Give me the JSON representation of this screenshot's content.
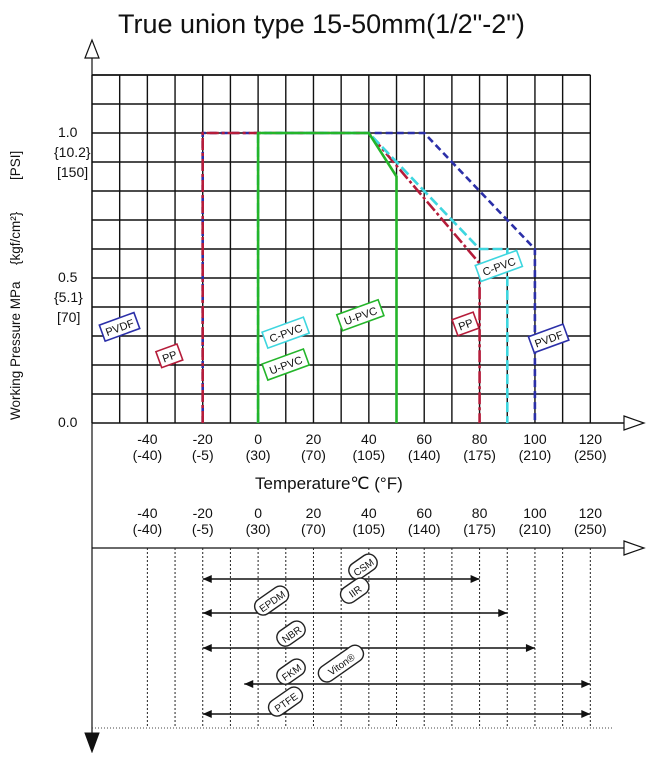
{
  "page_title": "True union type 15-50mm(1/2\"-2\")",
  "chart_data": {
    "type": "line",
    "title": "True union type 15-50mm(1/2\"-2\")",
    "xlabel": "Temperature℃ (°F)",
    "ylabel": {
      "mpa": "Working Pressure  MPa",
      "kgf": "{kgf/cm²}",
      "psi": "[PSI]"
    },
    "xlim": [
      -60,
      130
    ],
    "ylim": [
      0,
      1.2
    ],
    "grid": true,
    "x_ticks": [
      {
        "c": "-40",
        "f": "(-40)"
      },
      {
        "c": "-20",
        "f": "(-5)"
      },
      {
        "c": "0",
        "f": "(30)"
      },
      {
        "c": "20",
        "f": "(70)"
      },
      {
        "c": "40",
        "f": "(105)"
      },
      {
        "c": "60",
        "f": "(140)"
      },
      {
        "c": "80",
        "f": "(175)"
      },
      {
        "c": "100",
        "f": "(210)"
      },
      {
        "c": "120",
        "f": "(250)"
      }
    ],
    "y_ticks": [
      {
        "value": 1.0,
        "mpa": "1.0",
        "kgf": "{10.2}",
        "psi": "[150]"
      },
      {
        "value": 0.5,
        "mpa": "0.5",
        "kgf": "{5.1}",
        "psi": "[70]"
      },
      {
        "value": 0.0,
        "mpa": "0.0",
        "kgf": "",
        "psi": ""
      }
    ],
    "series": [
      {
        "name": "PVDF",
        "color": "#2b2fa8",
        "points": [
          [
            -20,
            0
          ],
          [
            -20,
            1.0
          ],
          [
            60,
            1.0
          ],
          [
            100,
            0.6
          ],
          [
            100,
            0
          ]
        ]
      },
      {
        "name": "PP",
        "color": "#b51c3a",
        "points": [
          [
            -20,
            0
          ],
          [
            -20,
            1.0
          ],
          [
            40,
            1.0
          ],
          [
            80,
            0.55
          ],
          [
            80,
            0
          ]
        ]
      },
      {
        "name": "C-PVC",
        "color": "#3ed6df",
        "points": [
          [
            0,
            0
          ],
          [
            0,
            1.0
          ],
          [
            40,
            1.0
          ],
          [
            80,
            0.6
          ],
          [
            90,
            0.6
          ],
          [
            90,
            0
          ]
        ]
      },
      {
        "name": "U-PVC",
        "color": "#24b52a",
        "points": [
          [
            0,
            0
          ],
          [
            0,
            1.0
          ],
          [
            40,
            1.0
          ],
          [
            50,
            0.85
          ],
          [
            50,
            0
          ]
        ]
      }
    ],
    "series_labels": [
      {
        "text": "PVDF",
        "color": "#2b2fa8",
        "x": -50,
        "y": 0.33,
        "angle": -20
      },
      {
        "text": "PP",
        "color": "#b51c3a",
        "x": -32,
        "y": 0.23,
        "angle": -20
      },
      {
        "text": "C-PVC",
        "color": "#3ed6df",
        "x": 10,
        "y": 0.31,
        "angle": -20
      },
      {
        "text": "U-PVC",
        "color": "#24b52a",
        "x": 10,
        "y": 0.2,
        "angle": -20
      },
      {
        "text": "U-PVC",
        "color": "#24b52a",
        "x": 37,
        "y": 0.37,
        "angle": -20
      },
      {
        "text": "PP",
        "color": "#b51c3a",
        "x": 75,
        "y": 0.34,
        "angle": -20
      },
      {
        "text": "PVDF",
        "color": "#2b2fa8",
        "x": 105,
        "y": 0.29,
        "angle": -20
      },
      {
        "text": "C-PVC",
        "color": "#3ed6df",
        "x": 87,
        "y": 0.54,
        "angle": -20
      }
    ],
    "seal_ranges": [
      {
        "name": "CSM",
        "min": -20,
        "max": 80
      },
      {
        "name": "EPDM",
        "min": -20,
        "max": 80
      },
      {
        "name": "IIR",
        "min": -20,
        "max": 90
      },
      {
        "name": "NBR",
        "min": -20,
        "max": 100
      },
      {
        "name": "FKM",
        "min": -20,
        "max": 120
      },
      {
        "name": "Viton®",
        "min": -5,
        "max": 120
      },
      {
        "name": "PTFE",
        "min": -20,
        "max": 120
      }
    ]
  }
}
